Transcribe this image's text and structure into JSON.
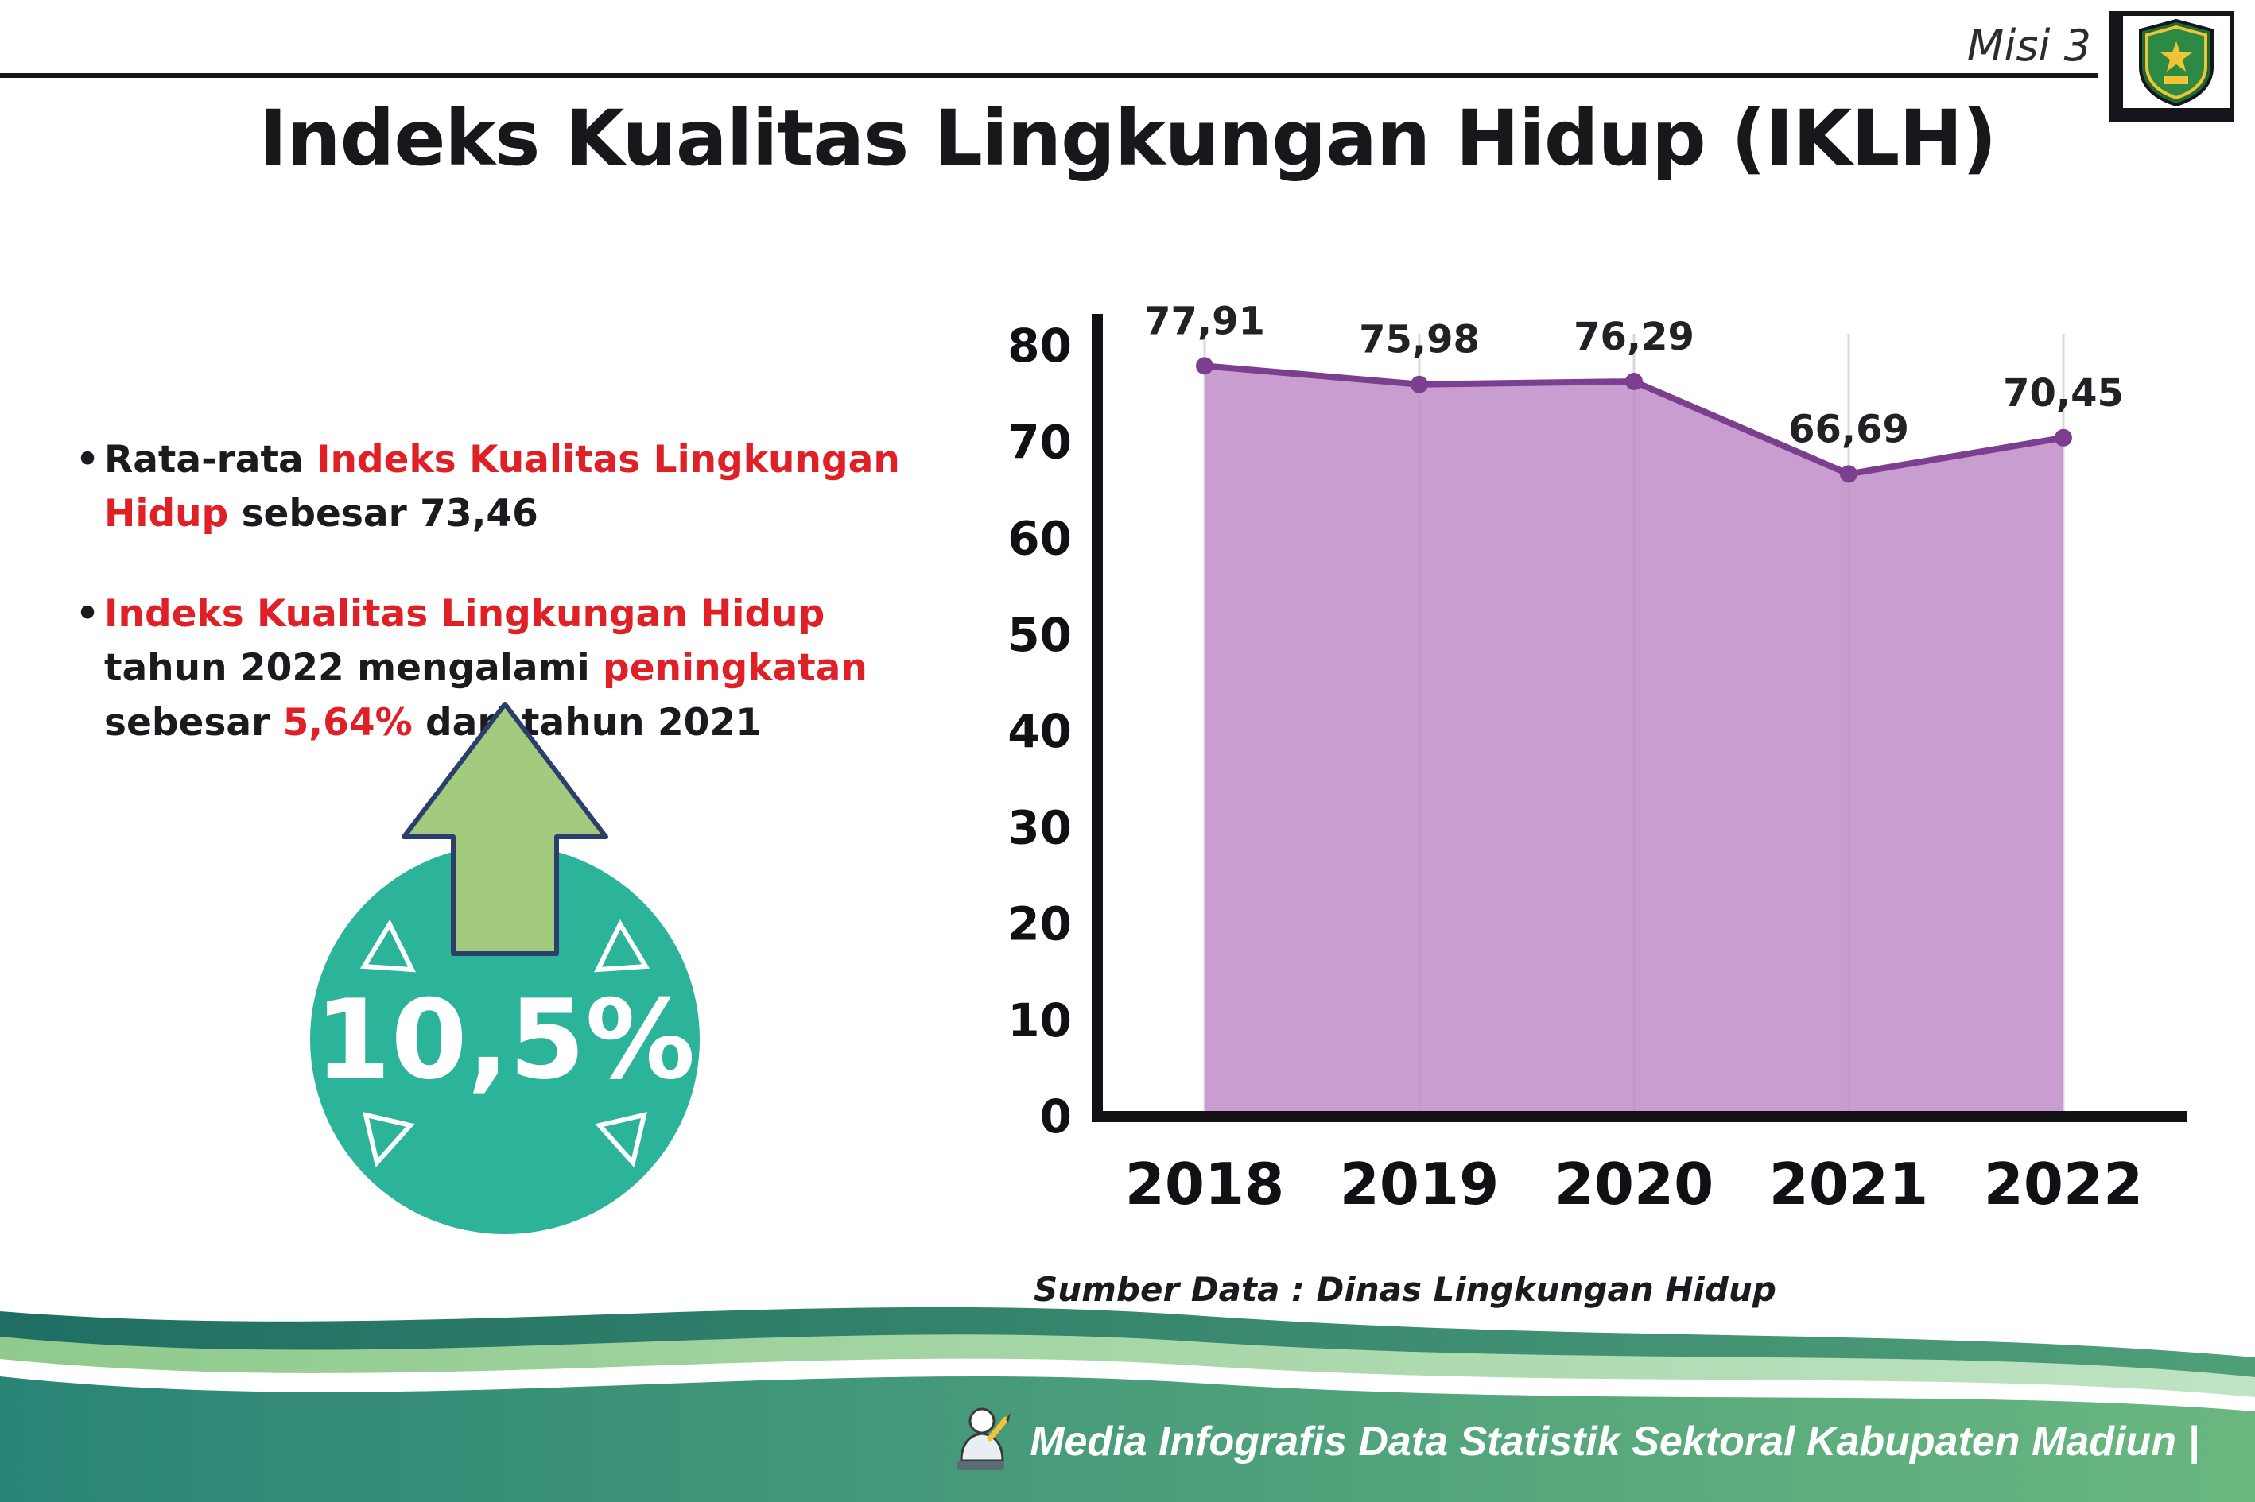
{
  "header": {
    "misi": "Misi 3",
    "title": "Indeks Kualitas Lingkungan Hidup (IKLH)"
  },
  "bullet_char": "•",
  "bullets": {
    "b1": {
      "t1": "Rata-rata ",
      "t2": "Indeks Kualitas Lingkungan Hidup",
      "t3": " sebesar 73,46"
    },
    "b2": {
      "t1": "Indeks Kualitas Lingkungan Hidup",
      "t2": " tahun 2022 mengalami ",
      "t3": "peningkatan",
      "t4": " sebesar ",
      "t5": "5,64%",
      "t6": " dari tahun 2021"
    }
  },
  "badge": {
    "value": "10,5%"
  },
  "chart_data": {
    "type": "area",
    "title": "",
    "categories": [
      "2018",
      "2019",
      "2020",
      "2021",
      "2022"
    ],
    "values": [
      77.91,
      75.98,
      76.29,
      66.69,
      70.45
    ],
    "value_labels": [
      "77,91",
      "75,98",
      "76,29",
      "66,69",
      "70,45"
    ],
    "xlabel": "",
    "ylabel": "",
    "ylim": [
      0,
      80
    ],
    "yticks": [
      0,
      10,
      20,
      30,
      40,
      50,
      60,
      70,
      80
    ],
    "grid": "vertical",
    "legend": "none",
    "fill_color": "#c18cc8",
    "line_color": "#7c3e8e",
    "source": "Sumber Data : Dinas Lingkungan Hidup"
  },
  "footer": {
    "text": "Media Infografis Data Statistik Sektoral Kabupaten Madiun |"
  },
  "colors": {
    "accent_red": "#e02027",
    "badge_teal": "#2bb49a",
    "arrow_green": "#a2cb7d",
    "footer_dark": "#1f6e63",
    "footer_green": "#6ab77f"
  }
}
